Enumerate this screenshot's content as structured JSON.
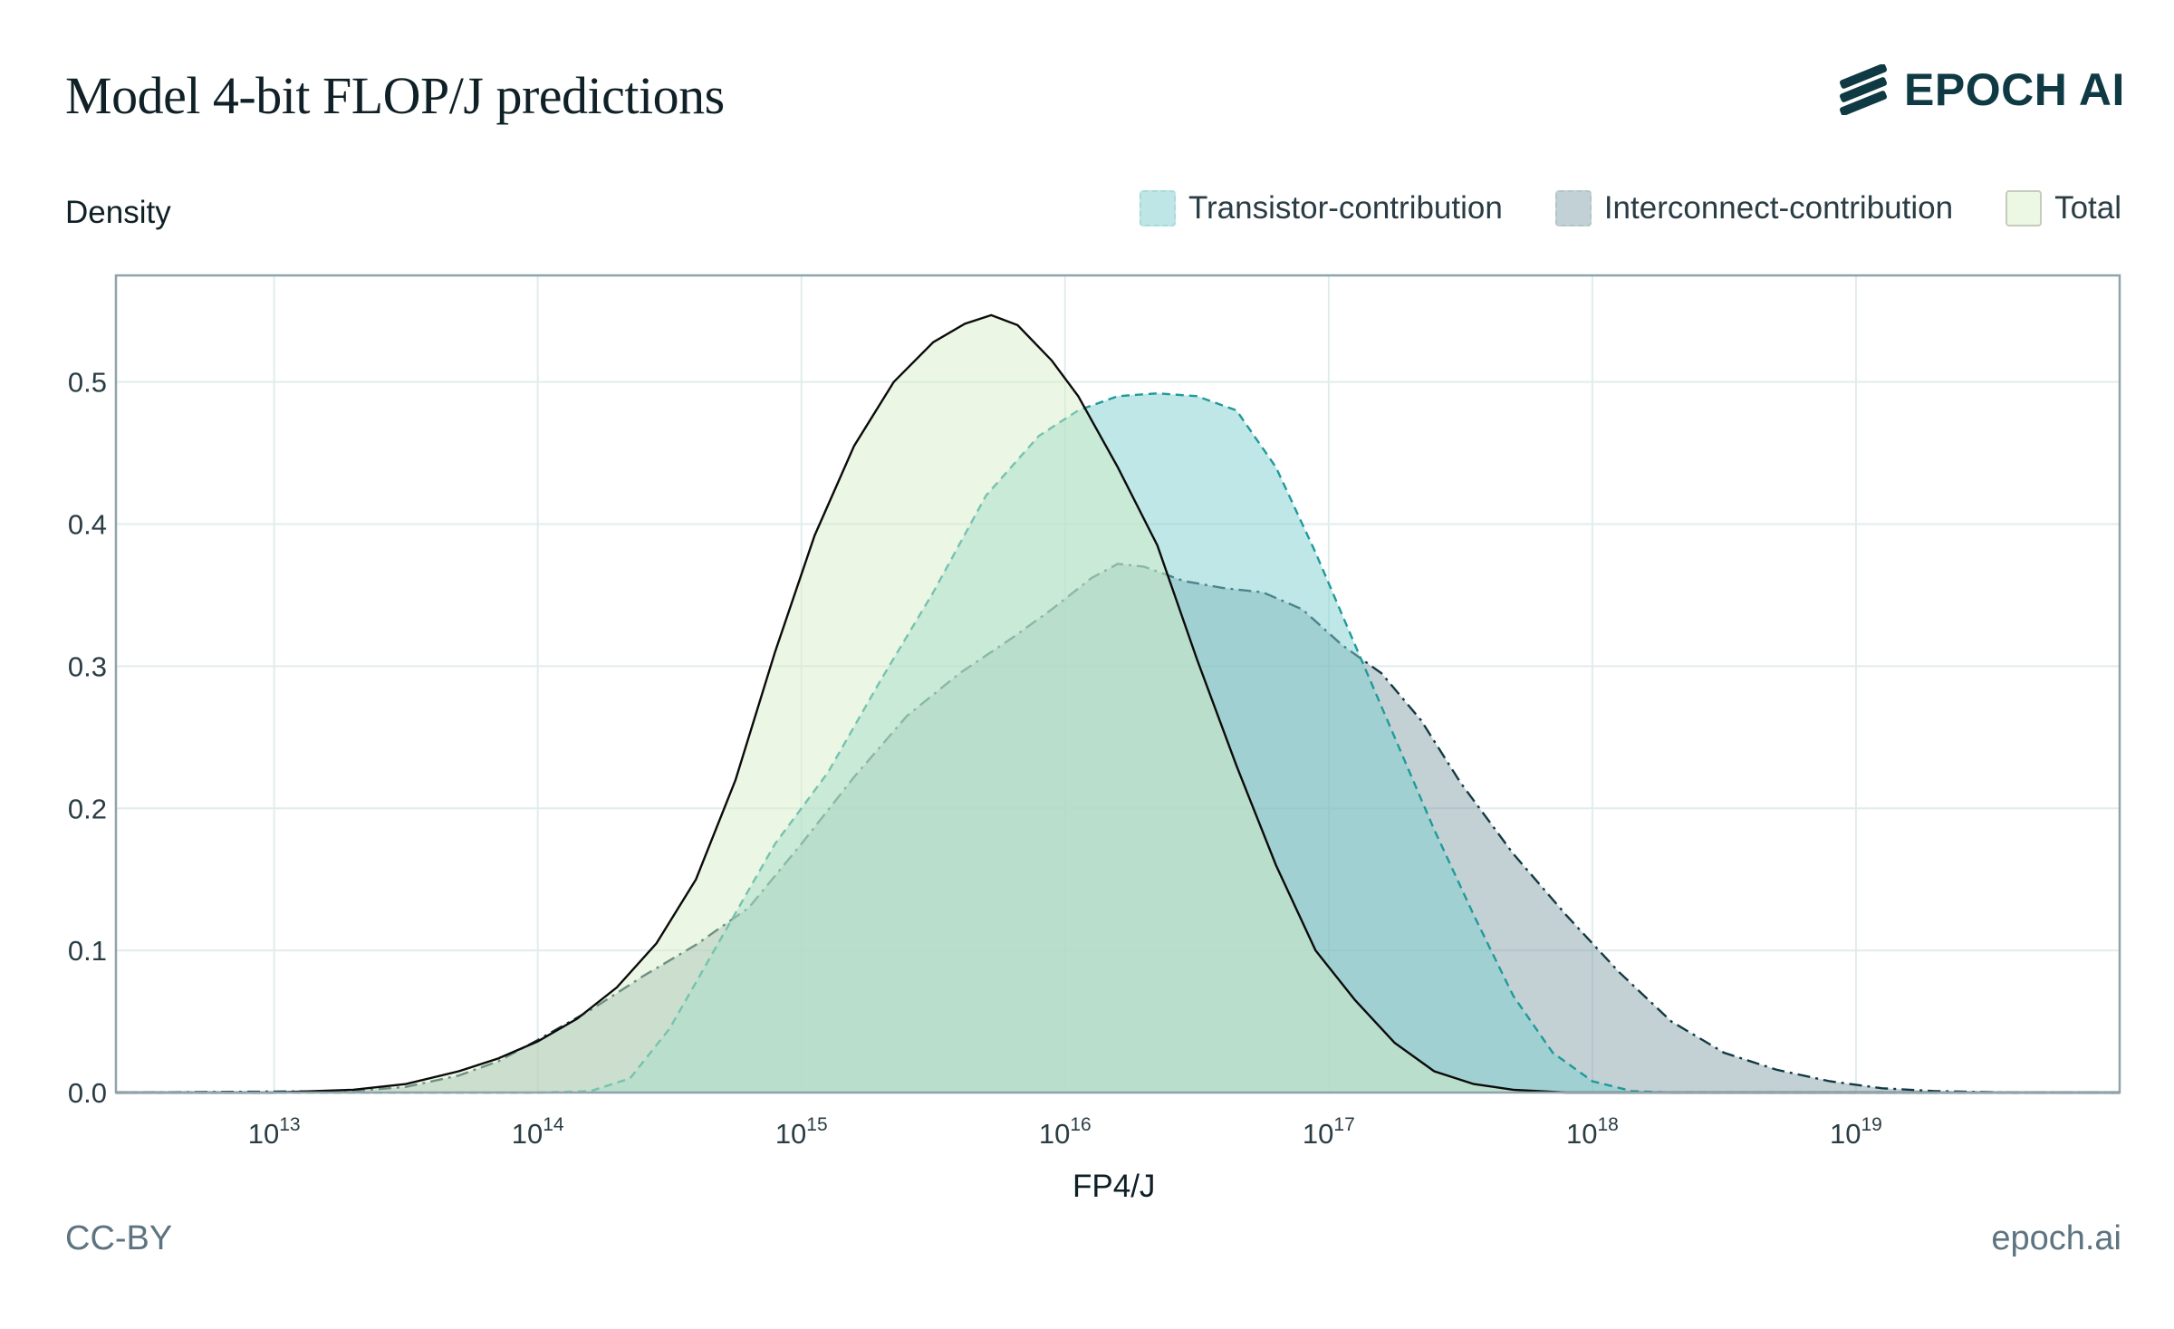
{
  "header": {
    "title": "Model 4-bit FLOP/J predictions",
    "logo_text": "EPOCH AI"
  },
  "footer": {
    "license": "CC-BY",
    "site": "epoch.ai"
  },
  "chart_data": {
    "type": "area",
    "title": "Model 4-bit FLOP/J predictions",
    "xlabel": "FP4/J",
    "ylabel": "Density",
    "x_scale": "log10",
    "xlim": [
      12.4,
      20.0
    ],
    "ylim": [
      0,
      0.575
    ],
    "x_ticks": [
      {
        "value": 13,
        "base": "10",
        "exp": "13"
      },
      {
        "value": 14,
        "base": "10",
        "exp": "14"
      },
      {
        "value": 15,
        "base": "10",
        "exp": "15"
      },
      {
        "value": 16,
        "base": "10",
        "exp": "16"
      },
      {
        "value": 17,
        "base": "10",
        "exp": "17"
      },
      {
        "value": 18,
        "base": "10",
        "exp": "18"
      },
      {
        "value": 19,
        "base": "10",
        "exp": "19"
      }
    ],
    "y_ticks": [
      {
        "value": 0.0,
        "label": "0.0"
      },
      {
        "value": 0.1,
        "label": "0.1"
      },
      {
        "value": 0.2,
        "label": "0.2"
      },
      {
        "value": 0.3,
        "label": "0.3"
      },
      {
        "value": 0.4,
        "label": "0.4"
      },
      {
        "value": 0.5,
        "label": "0.5"
      }
    ],
    "grid": true,
    "legend_position": "top-right",
    "series": [
      {
        "name": "Interconnect-contribution",
        "fill": "#6f929c",
        "fill_opacity": 0.42,
        "stroke": "#123a44",
        "dash": "dashdot",
        "points": [
          [
            12.4,
            0
          ],
          [
            13.3,
            0.001
          ],
          [
            13.5,
            0.004
          ],
          [
            13.7,
            0.012
          ],
          [
            13.85,
            0.022
          ],
          [
            14.0,
            0.037
          ],
          [
            14.2,
            0.058
          ],
          [
            14.4,
            0.082
          ],
          [
            14.6,
            0.104
          ],
          [
            14.8,
            0.13
          ],
          [
            15.0,
            0.175
          ],
          [
            15.2,
            0.222
          ],
          [
            15.4,
            0.265
          ],
          [
            15.6,
            0.295
          ],
          [
            15.8,
            0.32
          ],
          [
            15.95,
            0.34
          ],
          [
            16.1,
            0.362
          ],
          [
            16.2,
            0.372
          ],
          [
            16.3,
            0.37
          ],
          [
            16.45,
            0.36
          ],
          [
            16.6,
            0.355
          ],
          [
            16.75,
            0.352
          ],
          [
            16.9,
            0.34
          ],
          [
            17.05,
            0.315
          ],
          [
            17.2,
            0.295
          ],
          [
            17.35,
            0.262
          ],
          [
            17.5,
            0.218
          ],
          [
            17.7,
            0.168
          ],
          [
            17.9,
            0.125
          ],
          [
            18.1,
            0.085
          ],
          [
            18.3,
            0.05
          ],
          [
            18.5,
            0.028
          ],
          [
            18.7,
            0.016
          ],
          [
            18.9,
            0.008
          ],
          [
            19.1,
            0.003
          ],
          [
            19.3,
            0.001
          ],
          [
            19.6,
            0
          ],
          [
            20.0,
            0
          ]
        ]
      },
      {
        "name": "Transistor-contribution",
        "fill": "#7fcfd0",
        "fill_opacity": 0.5,
        "stroke": "#1f9a9a",
        "dash": "dashed",
        "points": [
          [
            12.4,
            0
          ],
          [
            14.0,
            0
          ],
          [
            14.2,
            0.001
          ],
          [
            14.35,
            0.01
          ],
          [
            14.5,
            0.045
          ],
          [
            14.7,
            0.11
          ],
          [
            14.9,
            0.175
          ],
          [
            15.1,
            0.225
          ],
          [
            15.3,
            0.29
          ],
          [
            15.5,
            0.352
          ],
          [
            15.7,
            0.42
          ],
          [
            15.9,
            0.462
          ],
          [
            16.05,
            0.48
          ],
          [
            16.2,
            0.49
          ],
          [
            16.35,
            0.492
          ],
          [
            16.5,
            0.49
          ],
          [
            16.65,
            0.48
          ],
          [
            16.8,
            0.44
          ],
          [
            16.95,
            0.38
          ],
          [
            17.1,
            0.315
          ],
          [
            17.25,
            0.25
          ],
          [
            17.4,
            0.185
          ],
          [
            17.55,
            0.125
          ],
          [
            17.7,
            0.068
          ],
          [
            17.85,
            0.028
          ],
          [
            18.0,
            0.008
          ],
          [
            18.15,
            0.001
          ],
          [
            18.3,
            0
          ],
          [
            20.0,
            0
          ]
        ]
      },
      {
        "name": "Total",
        "fill": "#d6efc7",
        "fill_opacity": 0.48,
        "stroke": "#0b0b0b",
        "dash": "solid",
        "points": [
          [
            12.4,
            0
          ],
          [
            13.0,
            0
          ],
          [
            13.3,
            0.002
          ],
          [
            13.5,
            0.006
          ],
          [
            13.7,
            0.015
          ],
          [
            13.85,
            0.024
          ],
          [
            14.0,
            0.036
          ],
          [
            14.15,
            0.052
          ],
          [
            14.3,
            0.074
          ],
          [
            14.45,
            0.105
          ],
          [
            14.6,
            0.15
          ],
          [
            14.75,
            0.22
          ],
          [
            14.9,
            0.31
          ],
          [
            15.05,
            0.392
          ],
          [
            15.2,
            0.455
          ],
          [
            15.35,
            0.5
          ],
          [
            15.5,
            0.528
          ],
          [
            15.62,
            0.541
          ],
          [
            15.72,
            0.547
          ],
          [
            15.82,
            0.54
          ],
          [
            15.95,
            0.515
          ],
          [
            16.05,
            0.49
          ],
          [
            16.2,
            0.44
          ],
          [
            16.35,
            0.385
          ],
          [
            16.5,
            0.305
          ],
          [
            16.65,
            0.23
          ],
          [
            16.8,
            0.16
          ],
          [
            16.95,
            0.1
          ],
          [
            17.1,
            0.065
          ],
          [
            17.25,
            0.035
          ],
          [
            17.4,
            0.015
          ],
          [
            17.55,
            0.006
          ],
          [
            17.7,
            0.002
          ],
          [
            17.9,
            0
          ],
          [
            20.0,
            0
          ]
        ]
      }
    ]
  }
}
